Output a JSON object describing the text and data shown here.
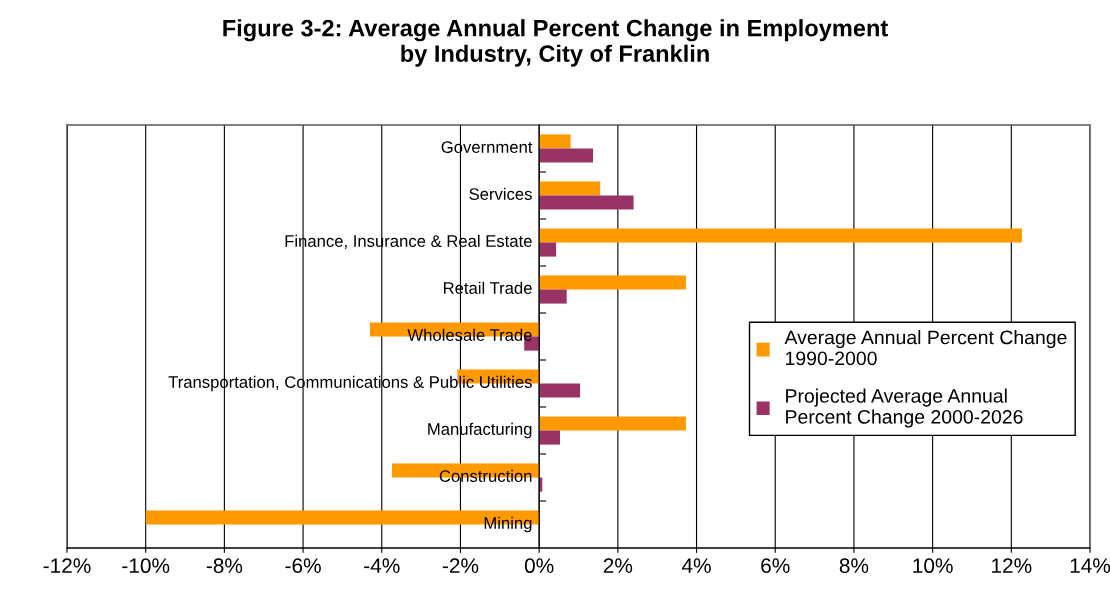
{
  "chart_data": {
    "type": "bar",
    "orientation": "horizontal",
    "title": "Figure 3-2: Average Annual Percent Change in Employment\nby Industry, City of Franklin",
    "categories": [
      "Government",
      "Services",
      "Finance, Insurance & Real Estate",
      "Retail Trade",
      "Wholesale Trade",
      "Transportation, Communications & Public Utilities",
      "Manufacturing",
      "Construction",
      "Mining"
    ],
    "series": [
      {
        "name": "Average Annual Percent Change\n1990-2000",
        "color": "#ff9900",
        "values": [
          0.8,
          1.55,
          12.27,
          3.73,
          -4.3,
          -2.08,
          3.73,
          -3.74,
          -10.0
        ]
      },
      {
        "name": "Projected Average Annual\nPercent Change 2000-2026",
        "color": "#993366",
        "values": [
          1.37,
          2.4,
          0.43,
          0.7,
          -0.38,
          1.04,
          0.53,
          0.08,
          0
        ]
      }
    ],
    "xlim": [
      -12,
      14
    ],
    "xticks": [
      {
        "value": -12,
        "label": "-12%"
      },
      {
        "value": -10,
        "label": "-10%"
      },
      {
        "value": -8,
        "label": "-8%"
      },
      {
        "value": -6,
        "label": "-6%"
      },
      {
        "value": -4,
        "label": "-4%"
      },
      {
        "value": -2,
        "label": "-2%"
      },
      {
        "value": 0,
        "label": "0%"
      },
      {
        "value": 2,
        "label": "2%"
      },
      {
        "value": 4,
        "label": "4%"
      },
      {
        "value": 6,
        "label": "6%"
      },
      {
        "value": 8,
        "label": "8%"
      },
      {
        "value": 10,
        "label": "10%"
      },
      {
        "value": 12,
        "label": "12%"
      },
      {
        "value": 14,
        "label": "14%"
      }
    ],
    "grid": "x",
    "legend": "right"
  }
}
